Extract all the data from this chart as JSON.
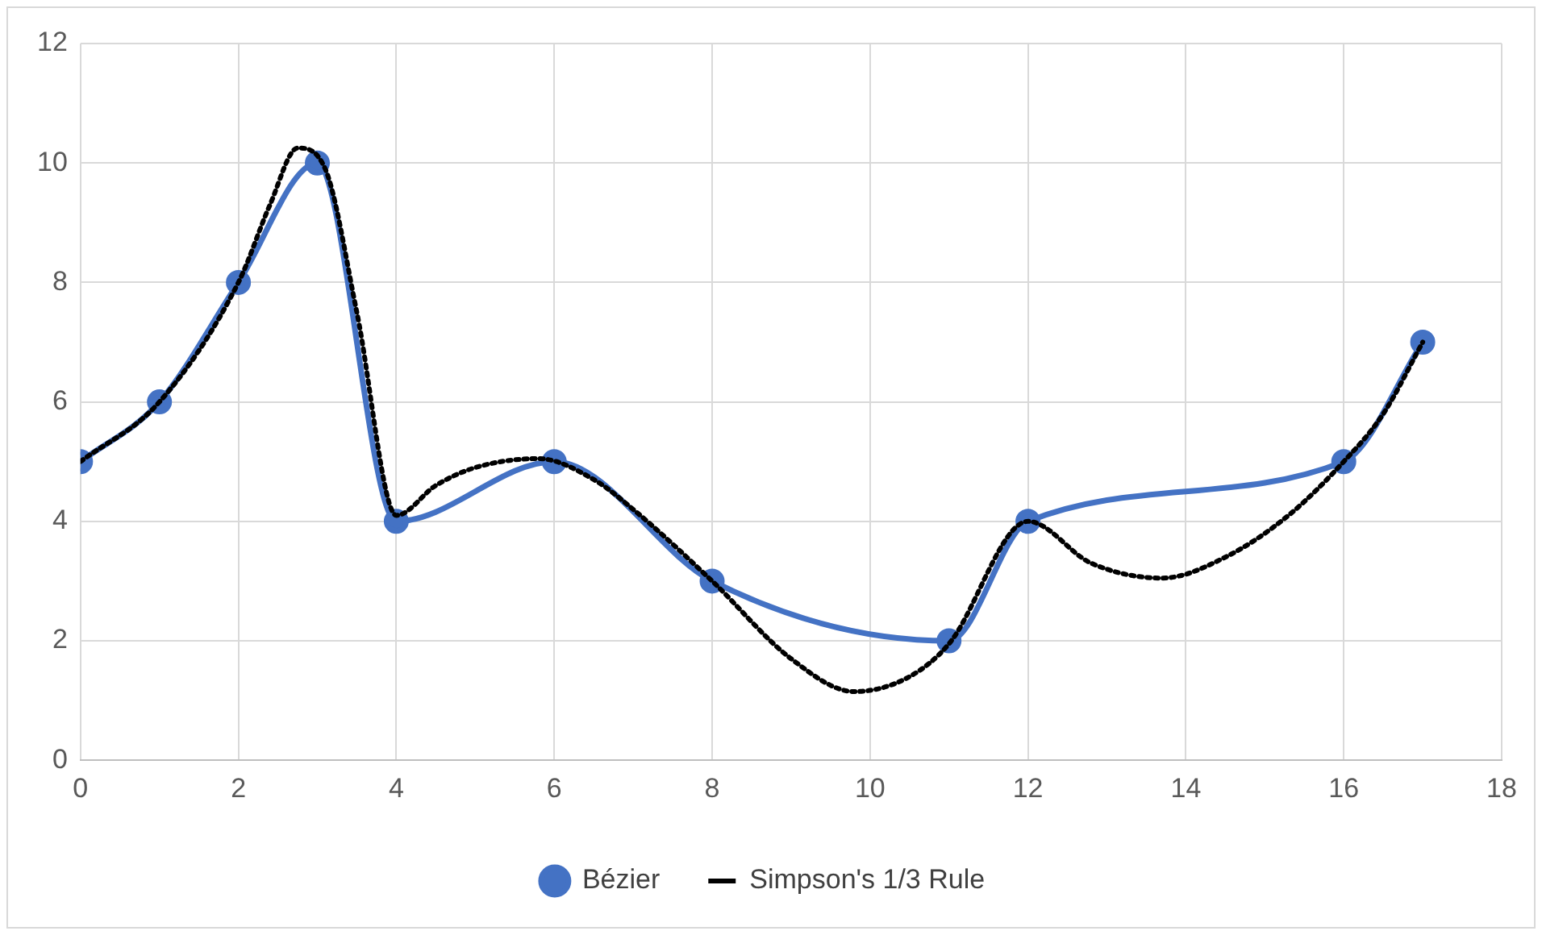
{
  "chart_data": {
    "type": "line",
    "xlim": [
      0,
      18
    ],
    "xticks": [
      0,
      2,
      4,
      6,
      8,
      10,
      12,
      14,
      16,
      18
    ],
    "ylim": [
      0,
      12
    ],
    "yticks": [
      0,
      2,
      4,
      6,
      8,
      10,
      12
    ],
    "grid": true,
    "legend": "bottom",
    "series": [
      {
        "name": "Bézier",
        "color": "#4472c4",
        "marker": "circle",
        "line_style": "solid",
        "x": [
          0,
          1,
          2,
          3,
          4,
          6,
          8,
          11,
          12,
          16,
          17
        ],
        "values": [
          5,
          6,
          8,
          10,
          4,
          5,
          3,
          2,
          4,
          5,
          7
        ]
      },
      {
        "name": "Simpson's 1/3 Rule",
        "color": "#000000",
        "marker": "none",
        "line_style": "dotted",
        "x": [
          0,
          1,
          2,
          2.4,
          2.75,
          3.1,
          3.5,
          4,
          4.5,
          5,
          5.8,
          6.5,
          7,
          8,
          9,
          9.8,
          10.5,
          11,
          12,
          12.8,
          13.7,
          14.5,
          15.3,
          16,
          16.5,
          17
        ],
        "values": [
          5,
          6,
          8,
          9.3,
          10.25,
          9.9,
          7.5,
          4.1,
          4.6,
          4.9,
          5.05,
          4.7,
          4.2,
          3,
          1.7,
          1.15,
          1.4,
          1.95,
          4,
          3.3,
          3.05,
          3.4,
          4.1,
          5,
          5.8,
          7
        ]
      }
    ]
  }
}
